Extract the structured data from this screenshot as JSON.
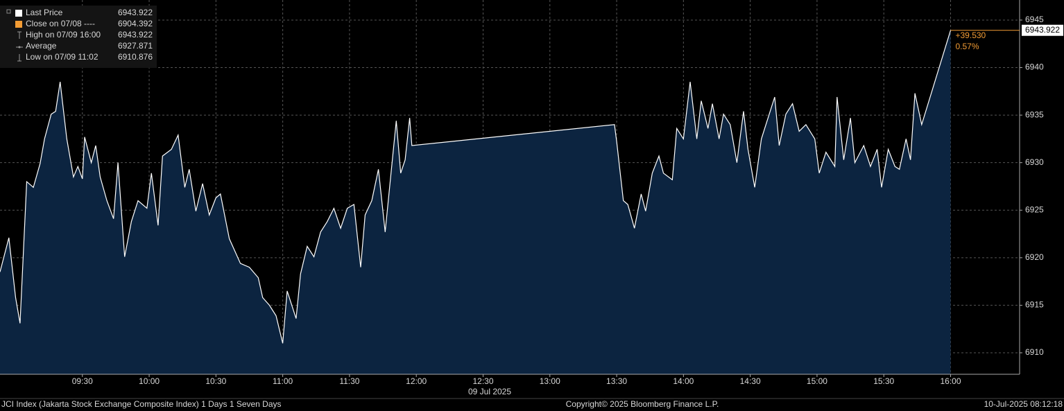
{
  "chart_data": {
    "type": "area",
    "xlabel": "09 Jul 2025",
    "footer_left": "JCI Index (Jakarta Stock Exchange Composite Index) 1 Days 1 Seven Days",
    "footer_center": "Copyright© 2025 Bloomberg Finance L.P.",
    "footer_right": "10-Jul-2025 08:12:18",
    "legend": [
      {
        "label": "Last Price",
        "value": "6943.922",
        "color": "#ffffff"
      },
      {
        "label": "Close on 07/08 ----",
        "value": "6904.392",
        "color": "#f39c34"
      },
      {
        "label": "High on 07/09 16:00",
        "value": "6943.922"
      },
      {
        "label": "Average",
        "value": "6927.871"
      },
      {
        "label": "Low on 07/09 11:02",
        "value": "6910.876"
      }
    ],
    "last_label": "6943.922",
    "change": "+39.530",
    "change_pct": "0.57%",
    "change_color": "#f39c34",
    "line_color": "#ffffff",
    "fill_color": "#0c2440",
    "grid": true,
    "xlim": [
      "08:53",
      "16:31"
    ],
    "xticks": [
      "09:30",
      "10:00",
      "10:30",
      "11:00",
      "11:30",
      "12:00",
      "12:30",
      "13:00",
      "13:30",
      "14:00",
      "14:30",
      "15:00",
      "15:30",
      "16:00"
    ],
    "ylim": [
      6907.74,
      6947.11
    ],
    "yticks": [
      6910,
      6915,
      6920,
      6925,
      6930,
      6935,
      6940,
      6945
    ],
    "series": [
      {
        "name": "Last Price",
        "x": [
          "08:53",
          "08:57",
          "09:00",
          "09:02",
          "09:05",
          "09:08",
          "09:11",
          "09:13",
          "09:16",
          "09:18",
          "09:20",
          "09:23",
          "09:26",
          "09:28",
          "09:30",
          "09:31",
          "09:34",
          "09:36",
          "09:38",
          "09:41",
          "09:44",
          "09:46",
          "09:49",
          "09:52",
          "09:55",
          "09:59",
          "10:01",
          "10:04",
          "10:06",
          "10:10",
          "10:13",
          "10:16",
          "10:18",
          "10:21",
          "10:24",
          "10:27",
          "10:30",
          "10:32",
          "10:36",
          "10:41",
          "10:45",
          "10:49",
          "10:51",
          "10:54",
          "10:57",
          "11:00",
          "11:02",
          "11:06",
          "11:08",
          "11:11",
          "11:14",
          "11:17",
          "11:20",
          "11:23",
          "11:26",
          "11:29",
          "11:32",
          "11:35",
          "11:37",
          "11:40",
          "11:43",
          "11:46",
          "11:48",
          "11:51",
          "11:53",
          "11:55",
          "11:57",
          "11:58",
          "13:29",
          "13:30",
          "13:33",
          "13:35",
          "13:38",
          "13:41",
          "13:43",
          "13:46",
          "13:49",
          "13:51",
          "13:55",
          "13:57",
          "14:00",
          "14:03",
          "14:06",
          "14:08",
          "14:11",
          "14:13",
          "14:16",
          "14:18",
          "14:21",
          "14:24",
          "14:27",
          "14:29",
          "14:32",
          "14:35",
          "14:38",
          "14:41",
          "14:43",
          "14:46",
          "14:49",
          "14:52",
          "14:55",
          "14:59",
          "15:01",
          "15:04",
          "15:08",
          "15:09",
          "15:12",
          "15:15",
          "15:17",
          "15:21",
          "15:24",
          "15:27",
          "15:29",
          "15:32",
          "15:35",
          "15:37",
          "15:40",
          "15:42",
          "15:44",
          "15:47",
          "16:00"
        ],
        "values": [
          6918.5,
          6922.1,
          6915.8,
          6913.1,
          6928.0,
          6927.4,
          6929.9,
          6932.5,
          6935.1,
          6935.4,
          6938.5,
          6932.5,
          6928.5,
          6929.6,
          6928.3,
          6932.7,
          6930.0,
          6931.8,
          6928.5,
          6926.0,
          6924.1,
          6930.0,
          6920.1,
          6923.8,
          6926.0,
          6925.2,
          6928.9,
          6923.4,
          6930.7,
          6931.4,
          6932.9,
          6927.4,
          6929.3,
          6924.9,
          6927.8,
          6924.5,
          6926.3,
          6926.7,
          6922.0,
          6919.4,
          6919.0,
          6917.9,
          6915.8,
          6915.0,
          6913.9,
          6911.0,
          6916.5,
          6913.6,
          6918.3,
          6921.2,
          6920.1,
          6922.7,
          6923.8,
          6925.2,
          6923.1,
          6925.2,
          6925.6,
          6919.0,
          6924.5,
          6926.0,
          6929.3,
          6922.7,
          6927.4,
          6934.4,
          6928.9,
          6930.3,
          6934.7,
          6931.8,
          6934.0,
          6932.2,
          6926.0,
          6925.6,
          6923.1,
          6926.7,
          6924.9,
          6928.9,
          6930.7,
          6928.9,
          6928.2,
          6933.6,
          6932.5,
          6938.5,
          6932.5,
          6936.5,
          6933.6,
          6936.2,
          6932.5,
          6935.1,
          6934.0,
          6930.0,
          6935.4,
          6931.4,
          6927.4,
          6932.5,
          6934.7,
          6936.9,
          6931.8,
          6935.1,
          6936.2,
          6933.3,
          6934.0,
          6932.5,
          6928.9,
          6931.1,
          6929.6,
          6936.9,
          6930.3,
          6934.7,
          6930.0,
          6931.8,
          6929.6,
          6931.4,
          6927.4,
          6931.4,
          6929.6,
          6929.3,
          6932.5,
          6930.3,
          6937.3,
          6934.0,
          6943.922
        ]
      }
    ]
  }
}
